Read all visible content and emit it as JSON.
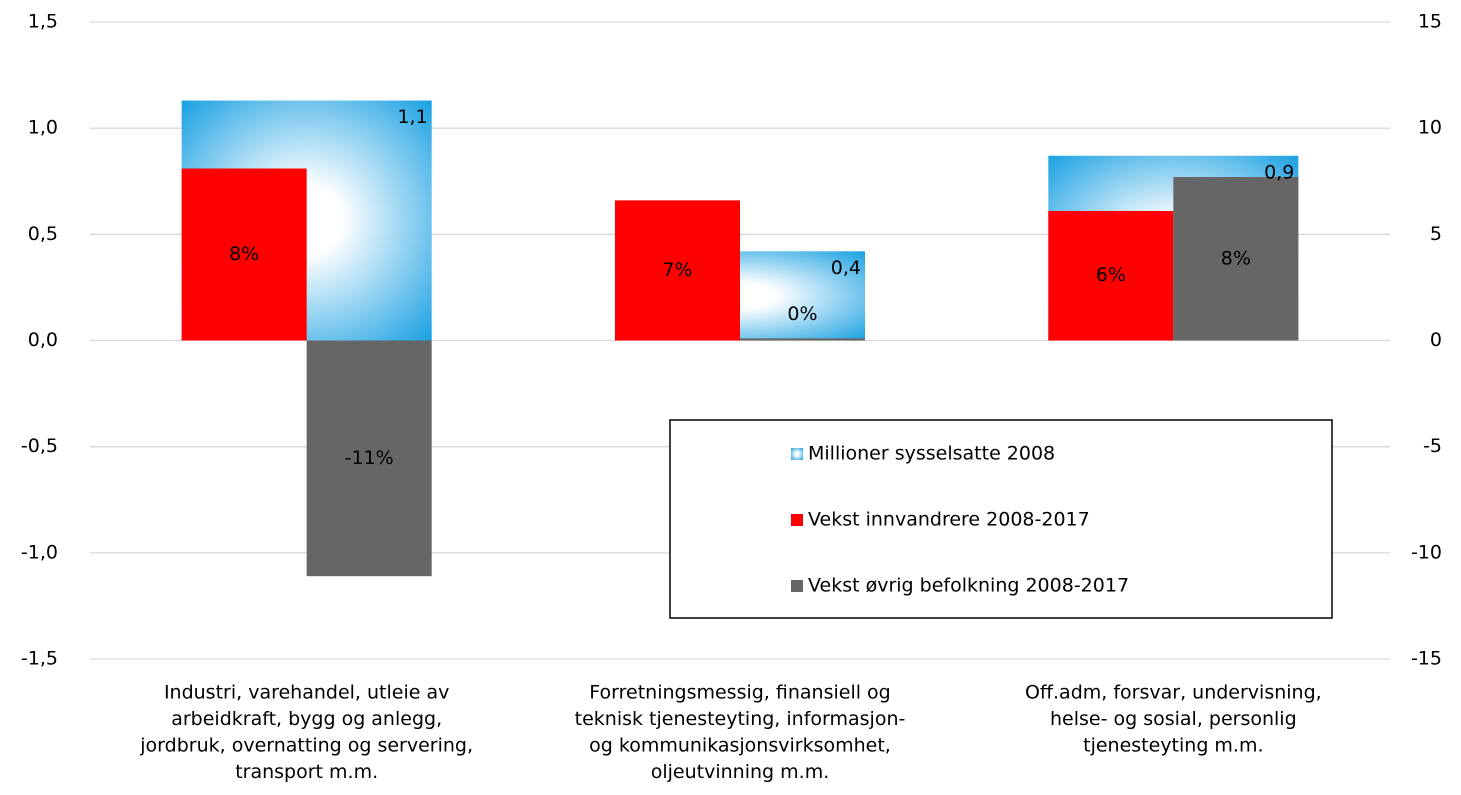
{
  "chart_data": {
    "type": "bar",
    "categories": [
      [
        "Industri, varehandel, utleie av",
        "arbeidkraft, bygg og anlegg,",
        "jordbruk, overnatting og servering,",
        "transport m.m."
      ],
      [
        "Forretningsmessig, finansiell og",
        "teknisk tjenesteyting, informasjon-",
        "og kommunikasjonsvirksomhet,",
        "oljeutvinning m.m."
      ],
      [
        "Off.adm, forsvar, undervisning,",
        "helse- og sosial, personlig",
        "tjenesteyting m.m."
      ]
    ],
    "series": [
      {
        "name": "Millioner sysselsatte 2008",
        "color": "#1ba1e2",
        "values": [
          1.13,
          0.42,
          0.87
        ],
        "value_labels": [
          "1,1",
          "0,4",
          "0,9"
        ]
      },
      {
        "name": "Vekst innvandrere 2008-2017",
        "color": "#ff0000",
        "values": [
          8.1,
          6.6,
          6.1
        ],
        "value_labels": [
          "8%",
          "7%",
          "6%"
        ],
        "axis": "y2"
      },
      {
        "name": "Vekst øvrig befolkning 2008-2017",
        "color": "#666666",
        "values": [
          -11.1,
          0.1,
          7.7
        ],
        "value_labels": [
          "-11%",
          "0%",
          "8%"
        ],
        "axis": "y2"
      }
    ],
    "ylim": [
      -1.5,
      1.5
    ],
    "yticks": [
      {
        "value": -1.5,
        "label": "-1,5"
      },
      {
        "value": -1.0,
        "label": "-1,0"
      },
      {
        "value": -0.5,
        "label": "-0,5"
      },
      {
        "value": 0,
        "label": "0,0"
      },
      {
        "value": 0.5,
        "label": "0,5"
      },
      {
        "value": 1.0,
        "label": "1,0"
      },
      {
        "value": 1.5,
        "label": "1,5"
      }
    ],
    "y2lim": [
      -15,
      15
    ],
    "y2ticks": [
      -15,
      -10,
      -5,
      0,
      5,
      10,
      15
    ],
    "grid": true,
    "legend": "lower right"
  }
}
